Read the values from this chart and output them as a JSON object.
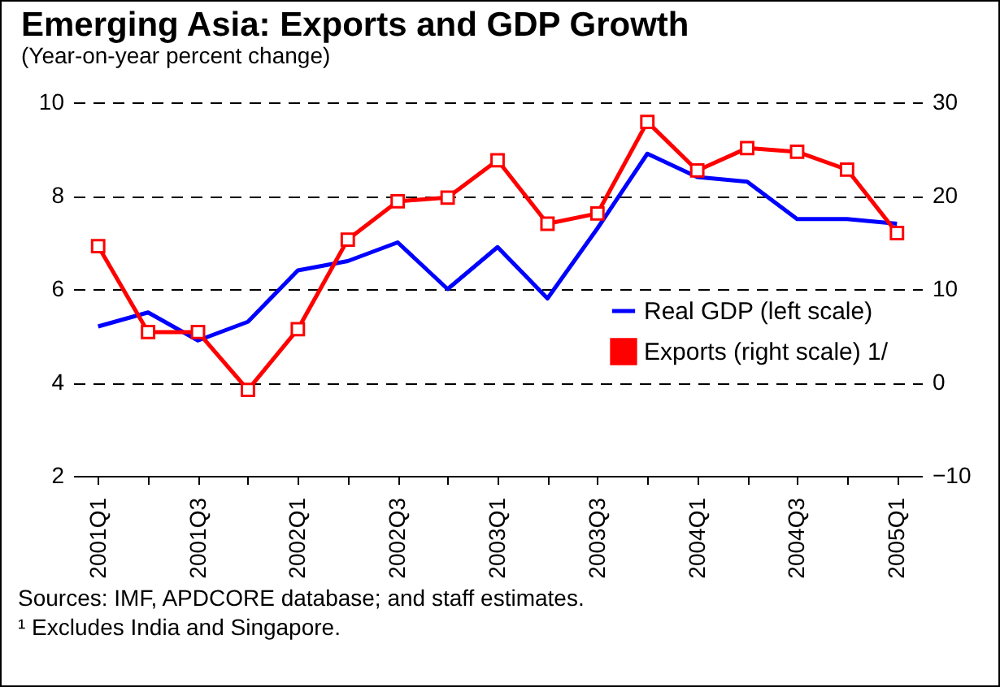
{
  "chart_data": {
    "type": "line",
    "title": "Emerging Asia: Exports and GDP Growth",
    "subtitle": "(Year-on-year percent change)",
    "categories": [
      "2001Q1",
      null,
      "2001Q3",
      null,
      "2002Q1",
      null,
      "2002Q3",
      null,
      "2003Q1",
      null,
      "2003Q3",
      null,
      "2004Q1",
      null,
      "2004Q3",
      null,
      "2005Q1"
    ],
    "series": [
      {
        "name": "Real GDP (left scale)",
        "color": "#0000ff",
        "marker": "none",
        "values": [
          5.2,
          5.5,
          4.9,
          5.3,
          6.4,
          6.6,
          7.0,
          6.0,
          6.9,
          5.8,
          7.3,
          8.9,
          8.4,
          8.3,
          7.5,
          7.5,
          7.4
        ]
      },
      {
        "name": "Exports (right scale) 1/",
        "color": "#ff0000",
        "marker": "square",
        "axis": "y2",
        "values": [
          14.6,
          5.4,
          5.4,
          -0.8,
          5.7,
          15.3,
          19.4,
          19.8,
          23.8,
          17.0,
          18.1,
          27.9,
          22.7,
          25.1,
          24.7,
          22.8,
          16.0
        ]
      }
    ],
    "ylim": [
      2,
      10
    ],
    "yticks": [
      2,
      4,
      6,
      8,
      10
    ],
    "y2lim": [
      -10,
      30
    ],
    "y2ticks": [
      -10,
      0,
      10,
      20,
      30
    ],
    "grid": true,
    "legend": "right",
    "line_style": "solid",
    "annotations": [
      "Sources: IMF, APDCORE database; and staff estimates.",
      "¹ Excludes India and Singapore."
    ]
  }
}
